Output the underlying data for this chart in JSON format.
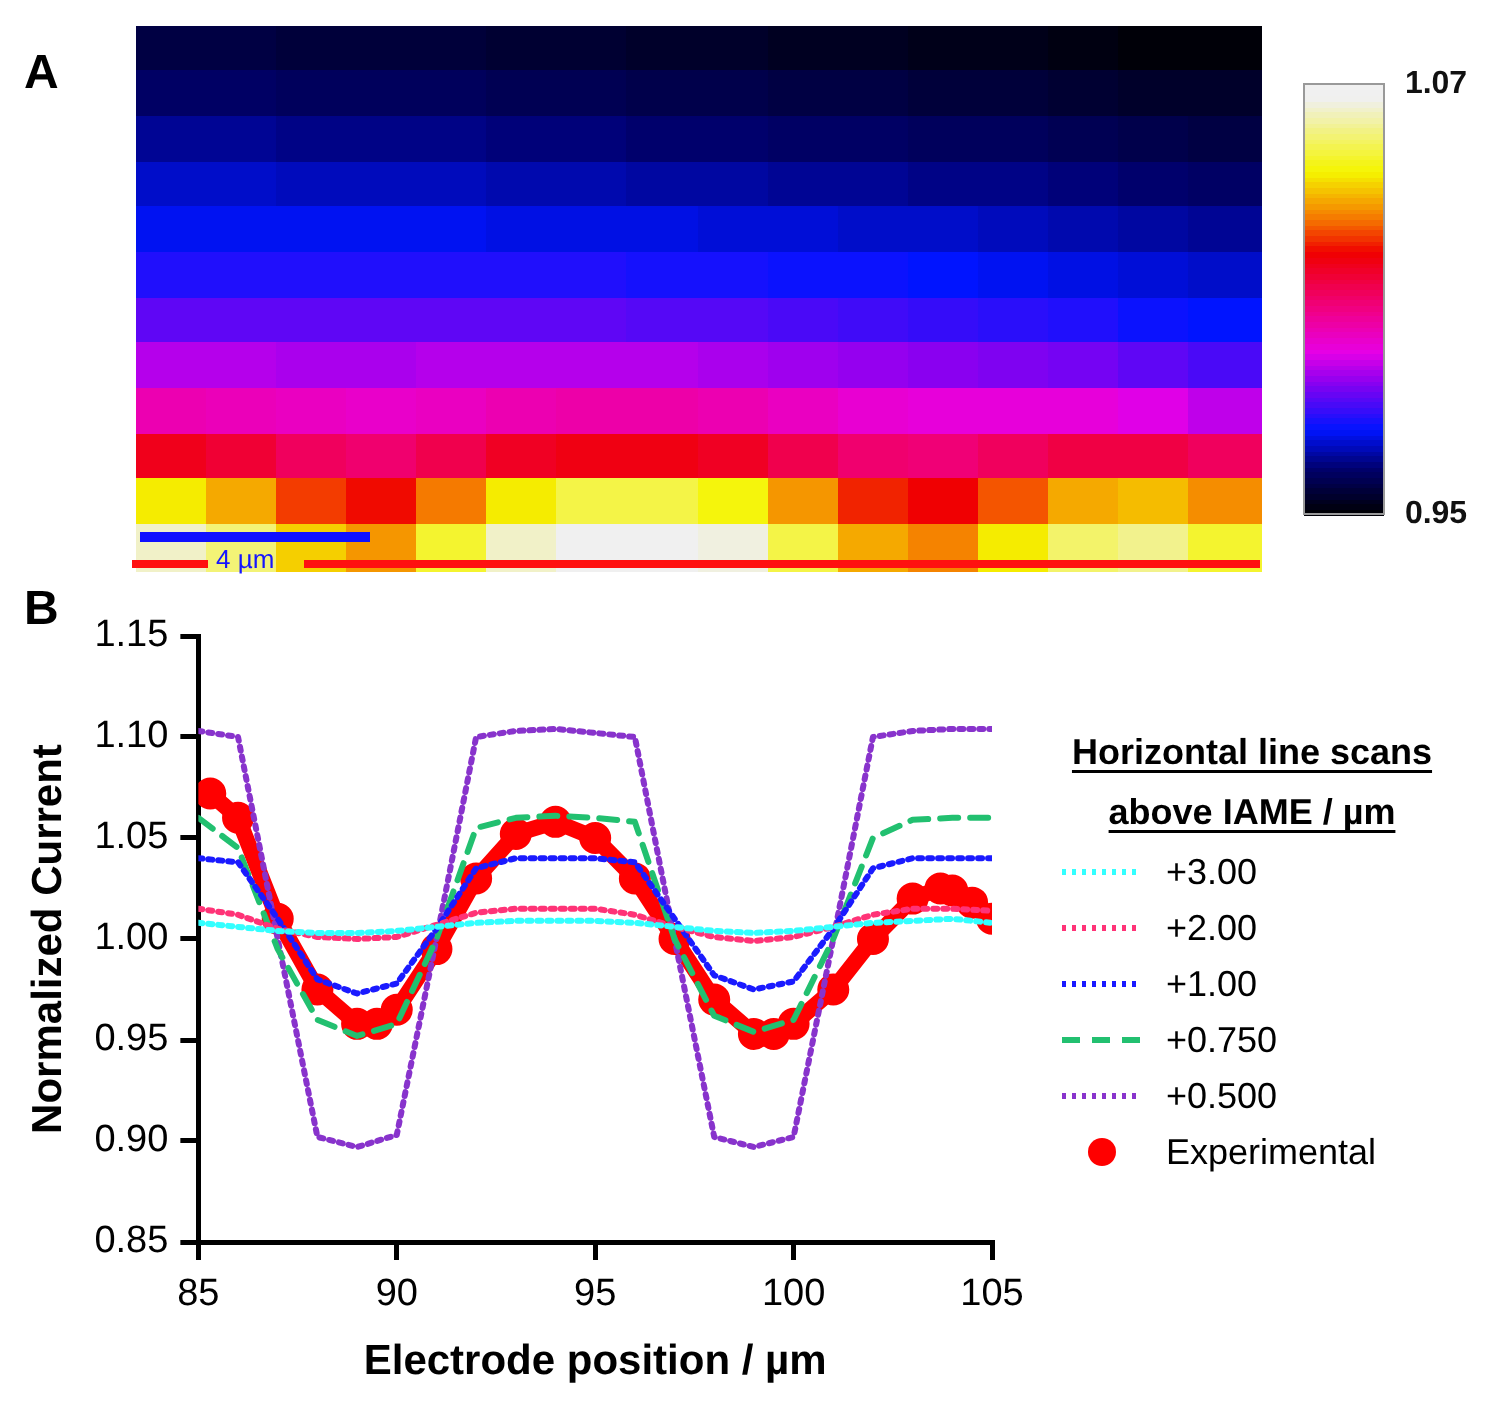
{
  "chart_data": [
    {
      "type": "heatmap",
      "title": "A",
      "annotations": [
        "4 µm"
      ],
      "categories": [
        null,
        null,
        null,
        null,
        null,
        null,
        null,
        null,
        null,
        null,
        null,
        null,
        null,
        null,
        null,
        null
      ],
      "y_categories": [
        null,
        null,
        null,
        null,
        null,
        null,
        null,
        null,
        null,
        null,
        null,
        null
      ],
      "clim": [
        0.95,
        1.07
      ],
      "cticks": [
        1.07,
        0.95
      ],
      "cells": [
        [
          0.958,
          0.958,
          0.957,
          0.957,
          0.957,
          0.956,
          0.956,
          0.955,
          0.955,
          0.954,
          0.954,
          0.953,
          0.953,
          0.952,
          0.951,
          0.951
        ],
        [
          0.962,
          0.962,
          0.961,
          0.961,
          0.961,
          0.96,
          0.96,
          0.959,
          0.959,
          0.958,
          0.958,
          0.957,
          0.957,
          0.956,
          0.955,
          0.955
        ],
        [
          0.966,
          0.966,
          0.965,
          0.965,
          0.965,
          0.964,
          0.964,
          0.963,
          0.963,
          0.962,
          0.962,
          0.961,
          0.961,
          0.96,
          0.959,
          0.958
        ],
        [
          0.97,
          0.97,
          0.969,
          0.969,
          0.969,
          0.968,
          0.968,
          0.967,
          0.967,
          0.966,
          0.966,
          0.965,
          0.965,
          0.964,
          0.963,
          0.962
        ],
        [
          0.973,
          0.973,
          0.973,
          0.973,
          0.973,
          0.972,
          0.972,
          0.972,
          0.971,
          0.971,
          0.97,
          0.97,
          0.969,
          0.968,
          0.967,
          0.966
        ],
        [
          0.977,
          0.977,
          0.977,
          0.977,
          0.977,
          0.977,
          0.977,
          0.976,
          0.976,
          0.975,
          0.975,
          0.974,
          0.973,
          0.972,
          0.971,
          0.97
        ],
        [
          0.983,
          0.983,
          0.983,
          0.983,
          0.983,
          0.983,
          0.983,
          0.982,
          0.982,
          0.981,
          0.98,
          0.979,
          0.978,
          0.977,
          0.975,
          0.974
        ],
        [
          0.991,
          0.991,
          0.99,
          0.99,
          0.991,
          0.991,
          0.991,
          0.991,
          0.99,
          0.989,
          0.988,
          0.987,
          0.986,
          0.985,
          0.983,
          0.981
        ],
        [
          1.002,
          1.001,
          1.0,
          0.999,
          1.0,
          1.002,
          1.003,
          1.003,
          1.002,
          1.0,
          0.998,
          0.997,
          0.997,
          0.997,
          0.995,
          0.992
        ],
        [
          1.02,
          1.017,
          1.012,
          1.01,
          1.014,
          1.019,
          1.021,
          1.021,
          1.019,
          1.014,
          1.01,
          1.009,
          1.012,
          1.015,
          1.015,
          1.012
        ],
        [
          1.045,
          1.038,
          1.028,
          1.024,
          1.033,
          1.045,
          1.052,
          1.052,
          1.047,
          1.036,
          1.026,
          1.023,
          1.03,
          1.038,
          1.04,
          1.035
        ],
        [
          1.063,
          1.056,
          1.042,
          1.036,
          1.05,
          1.063,
          1.068,
          1.068,
          1.065,
          1.052,
          1.038,
          1.034,
          1.045,
          1.055,
          1.058,
          1.05
        ]
      ]
    },
    {
      "type": "line",
      "title": "B",
      "xlabel": "Electrode position / µm",
      "ylabel": "Normalized Current",
      "legend": "right",
      "legend_title": "Horizontal line scans above IAME / µm",
      "grid": false,
      "xlim": [
        85,
        105
      ],
      "xticks": [
        85,
        90,
        95,
        100,
        105
      ],
      "ylim": [
        0.85,
        1.15
      ],
      "yticks": [
        0.85,
        {
          "value": 0.9,
          "label": "0.90"
        },
        0.95,
        {
          "value": 1.0,
          "label": "1.00"
        },
        1.05,
        {
          "value": 1.1,
          "label": "1.10"
        },
        1.15
      ],
      "x": [
        85,
        86,
        87,
        88,
        89,
        90,
        91,
        92,
        93,
        94,
        95,
        96,
        97,
        98,
        99,
        100,
        101,
        102,
        103,
        104,
        105
      ],
      "series": [
        {
          "name": "+3.00",
          "color": "#33ffff",
          "line_style": "dotted",
          "marker": "none",
          "values": [
            1.008,
            1.006,
            1.004,
            1.003,
            1.003,
            1.004,
            1.006,
            1.008,
            1.009,
            1.009,
            1.009,
            1.008,
            1.006,
            1.004,
            1.003,
            1.004,
            1.006,
            1.008,
            1.009,
            1.01,
            1.008
          ]
        },
        {
          "name": "+2.00",
          "color": "#ff3377",
          "line_style": "dotted",
          "marker": "none",
          "values": [
            1.015,
            1.012,
            1.005,
            1.001,
            1.0,
            1.001,
            1.007,
            1.013,
            1.015,
            1.015,
            1.015,
            1.012,
            1.006,
            1.001,
            0.999,
            1.001,
            1.006,
            1.012,
            1.015,
            1.015,
            1.014
          ]
        },
        {
          "name": "+1.00",
          "color": "#1a1aff",
          "line_style": "dotted",
          "marker": "none",
          "values": [
            1.04,
            1.038,
            1.01,
            0.98,
            0.973,
            0.978,
            1.005,
            1.035,
            1.04,
            1.04,
            1.04,
            1.038,
            1.01,
            0.982,
            0.975,
            0.979,
            1.005,
            1.035,
            1.04,
            1.04,
            1.04
          ]
        },
        {
          "name": "+0.750",
          "color": "#22c070",
          "line_style": "dashed",
          "marker": "none",
          "values": [
            1.06,
            1.045,
            0.995,
            0.96,
            0.952,
            0.958,
            1.0,
            1.055,
            1.06,
            1.061,
            1.06,
            1.058,
            1.0,
            0.962,
            0.954,
            0.96,
            1.0,
            1.05,
            1.059,
            1.06,
            1.06
          ]
        },
        {
          "name": "+0.500",
          "color": "#8833cc",
          "line_style": "dotted",
          "marker": "none",
          "values": [
            1.103,
            1.1,
            1.0,
            0.902,
            0.897,
            0.903,
            1.0,
            1.1,
            1.103,
            1.104,
            1.102,
            1.1,
            1.0,
            0.902,
            0.897,
            0.902,
            1.0,
            1.1,
            1.103,
            1.104,
            1.104
          ]
        },
        {
          "name": "Experimental",
          "color": "#ff0000",
          "line_style": "solid",
          "marker": "circle",
          "x": [
            85.3,
            86,
            87,
            88,
            89,
            89.5,
            90,
            91,
            92,
            93,
            94,
            95,
            96,
            97,
            98,
            99,
            99.5,
            100,
            101,
            102,
            103,
            103.7,
            104,
            104.5,
            105
          ],
          "values": [
            1.072,
            1.06,
            1.01,
            0.975,
            0.958,
            0.958,
            0.965,
            0.995,
            1.03,
            1.052,
            1.058,
            1.05,
            1.03,
            1.0,
            0.97,
            0.953,
            0.953,
            0.958,
            0.975,
            1.0,
            1.02,
            1.025,
            1.024,
            1.018,
            1.01
          ]
        }
      ]
    }
  ]
}
